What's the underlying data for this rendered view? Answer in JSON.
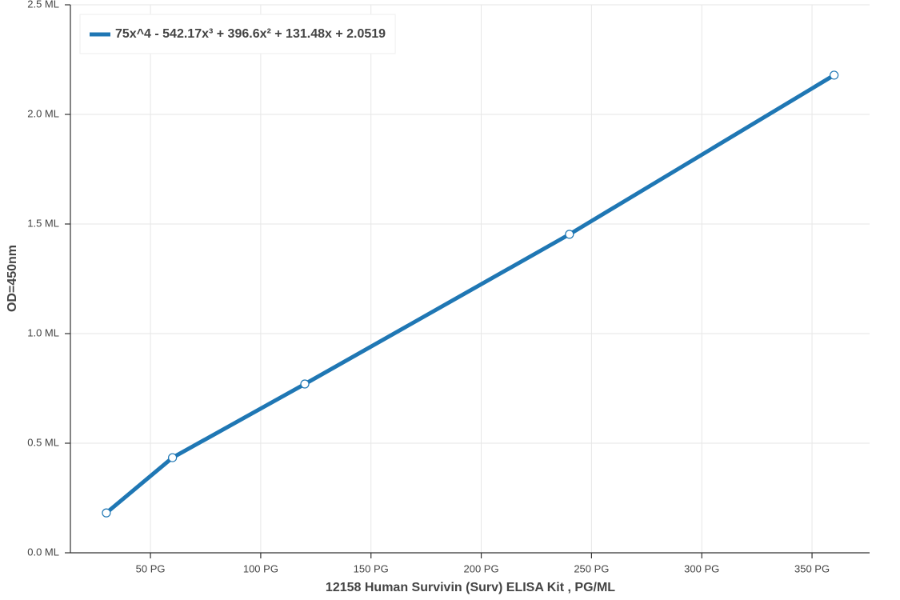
{
  "chart_data": {
    "type": "line",
    "xlabel": "12158 Human Survivin (Surv) ELISA Kit , PG/ML",
    "ylabel": "OD=450nm",
    "x": [
      30,
      60,
      120,
      240,
      360
    ],
    "series": [
      {
        "name": "75x^4 - 542.17x³ + 396.6x² + 131.48x + 2.0519",
        "color": "#1f77b4",
        "values": [
          0.182,
          0.434,
          0.77,
          1.453,
          2.179
        ]
      }
    ],
    "xlim": [
      13.7,
      376.1
    ],
    "xticks": [
      {
        "value": 50,
        "label": "50 PG"
      },
      {
        "value": 100,
        "label": "100 PG"
      },
      {
        "value": 150,
        "label": "150 PG"
      },
      {
        "value": 200,
        "label": "200 PG"
      },
      {
        "value": 250,
        "label": "250 PG"
      },
      {
        "value": 300,
        "label": "300 PG"
      },
      {
        "value": 350,
        "label": "350 PG"
      }
    ],
    "ylim": [
      0,
      2.5
    ],
    "yticks": [
      {
        "value": 0,
        "label": "0.0 ML"
      },
      {
        "value": 0.5,
        "label": "0.5 ML"
      },
      {
        "value": 1,
        "label": "1.0 ML"
      },
      {
        "value": 1.5,
        "label": "1.5 ML"
      },
      {
        "value": 2,
        "label": "2.0 ML"
      },
      {
        "value": 2.5,
        "label": "2.5 ML"
      }
    ],
    "grid": true,
    "legend": "upper-left"
  }
}
